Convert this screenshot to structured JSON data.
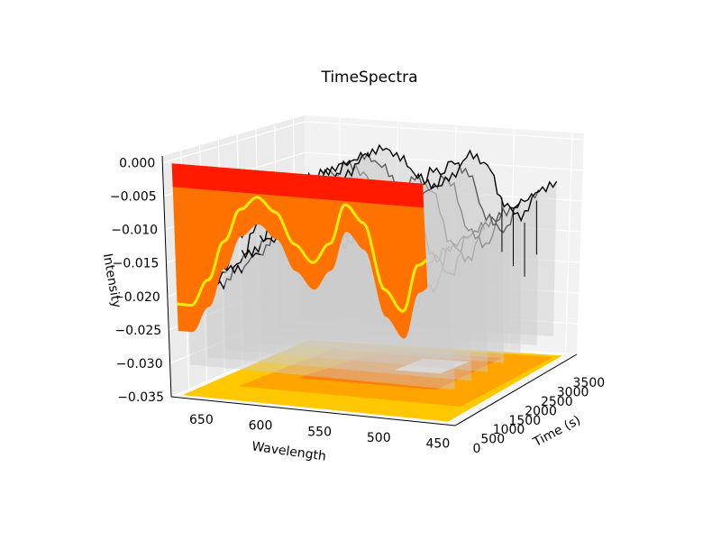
{
  "chart_data": {
    "type": "surface3d",
    "title": "TimeSpectra",
    "xlabel": "Wavelength",
    "ylabel": "Time (s)",
    "zlabel": "Intensity",
    "x_ticks": [
      650,
      600,
      550,
      500,
      450
    ],
    "y_ticks": [
      0,
      500,
      1000,
      1500,
      2000,
      2500,
      3000,
      3500
    ],
    "z_ticks": [
      "0.000",
      "−0.005",
      "−0.010",
      "−0.015",
      "−0.020",
      "−0.025",
      "−0.030",
      "−0.035"
    ],
    "xlim": [
      440,
      680
    ],
    "ylim": [
      0,
      3800
    ],
    "zlim": [
      -0.035,
      0.001
    ],
    "grid": true,
    "spectrum": {
      "wavelength": [
        450,
        465,
        480,
        495,
        510,
        525,
        540,
        555,
        570,
        585,
        600,
        615,
        630,
        645,
        660,
        675
      ],
      "intensity": [
        -0.01,
        -0.012,
        -0.019,
        -0.016,
        -0.0065,
        -0.004,
        -0.01,
        -0.013,
        -0.0105,
        -0.006,
        -0.004,
        -0.006,
        -0.011,
        -0.017,
        -0.021,
        -0.021
      ]
    },
    "colors": {
      "front_surface": "#ff7200",
      "surface_top": "#ff1a00",
      "highlight_band": "#ffee00",
      "floor_fill": "#ffc800",
      "wireframe": "#000000",
      "wire_fill": "#cccccc"
    }
  }
}
